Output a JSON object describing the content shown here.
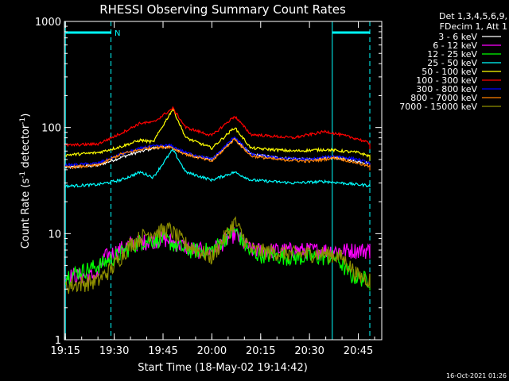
{
  "chart_data": {
    "type": "line",
    "title": "RHESSI Observing Summary Count Rates",
    "xlabel": "Start Time (18-May-02 19:14:42)",
    "ylabel_main": "Count Rate (s",
    "ylabel_sup1": "-1",
    "ylabel_mid": " detector",
    "ylabel_sup2": "-1",
    "ylabel_end": ")",
    "yscale": "log",
    "xlim": [
      "19:15",
      "20:52"
    ],
    "ylim": [
      1,
      1000
    ],
    "x_ticks": [
      "19:15",
      "19:30",
      "19:45",
      "20:00",
      "20:15",
      "20:30",
      "20:45"
    ],
    "y_ticks": [
      "1",
      "10",
      "100",
      "1000"
    ],
    "legend_header": [
      "Det 1,3,4,5,6,9,",
      "FDecim 1, Att 1"
    ],
    "legend_position": "right",
    "annotation_letter": "N",
    "timestamp": "16-Oct-2021 01:26",
    "grid": false,
    "series": [
      {
        "name": "3 - 6 keV",
        "color": "#ffffff",
        "points": [
          [
            "19:15",
            42
          ],
          [
            "19:25",
            44
          ],
          [
            "19:35",
            56
          ],
          [
            "19:42",
            64
          ],
          [
            "19:47",
            66
          ],
          [
            "19:52",
            56
          ],
          [
            "20:00",
            50
          ],
          [
            "20:07",
            78
          ],
          [
            "20:12",
            56
          ],
          [
            "20:20",
            52
          ],
          [
            "20:30",
            50
          ],
          [
            "20:38",
            52
          ],
          [
            "20:45",
            48
          ],
          [
            "20:52",
            44
          ]
        ]
      },
      {
        "name": "6 - 12 keV",
        "color": "#ff00ff",
        "points": [
          [
            "19:15",
            4
          ],
          [
            "19:25",
            4
          ],
          [
            "19:27",
            6
          ],
          [
            "19:35",
            8
          ],
          [
            "19:45",
            9
          ],
          [
            "19:55",
            7
          ],
          [
            "20:00",
            7
          ],
          [
            "20:07",
            10
          ],
          [
            "20:12",
            7
          ],
          [
            "20:25",
            7
          ],
          [
            "20:40",
            7
          ],
          [
            "20:45",
            7
          ],
          [
            "20:52",
            7
          ]
        ]
      },
      {
        "name": "12 - 25 keV",
        "color": "#00ff00",
        "points": [
          [
            "19:15",
            4
          ],
          [
            "19:25",
            5
          ],
          [
            "19:30",
            6
          ],
          [
            "19:38",
            8.5
          ],
          [
            "19:45",
            9
          ],
          [
            "19:52",
            7
          ],
          [
            "20:00",
            7
          ],
          [
            "20:07",
            11
          ],
          [
            "20:12",
            6.5
          ],
          [
            "20:25",
            6
          ],
          [
            "20:38",
            6
          ],
          [
            "20:43",
            4
          ],
          [
            "20:52",
            3.5
          ]
        ]
      },
      {
        "name": "25 - 50 keV",
        "color": "#00ffff",
        "points": [
          [
            "19:15",
            28
          ],
          [
            "19:25",
            29
          ],
          [
            "19:32",
            32
          ],
          [
            "19:38",
            38
          ],
          [
            "19:42",
            34
          ],
          [
            "19:48",
            62
          ],
          [
            "19:52",
            38
          ],
          [
            "20:00",
            32
          ],
          [
            "20:07",
            38
          ],
          [
            "20:12",
            32
          ],
          [
            "20:25",
            30
          ],
          [
            "20:35",
            31
          ],
          [
            "20:45",
            29
          ],
          [
            "20:52",
            28
          ]
        ]
      },
      {
        "name": "50 - 100 keV",
        "color": "#ffff00",
        "points": [
          [
            "19:15",
            55
          ],
          [
            "19:25",
            58
          ],
          [
            "19:32",
            66
          ],
          [
            "19:38",
            76
          ],
          [
            "19:42",
            73
          ],
          [
            "19:48",
            150
          ],
          [
            "19:52",
            80
          ],
          [
            "20:00",
            64
          ],
          [
            "20:07",
            100
          ],
          [
            "20:12",
            64
          ],
          [
            "20:25",
            60
          ],
          [
            "20:35",
            62
          ],
          [
            "20:45",
            58
          ],
          [
            "20:52",
            50
          ]
        ]
      },
      {
        "name": "100 - 300 keV",
        "color": "#ff0000",
        "points": [
          [
            "19:15",
            68
          ],
          [
            "19:25",
            70
          ],
          [
            "19:32",
            88
          ],
          [
            "19:38",
            110
          ],
          [
            "19:42",
            112
          ],
          [
            "19:48",
            152
          ],
          [
            "19:52",
            100
          ],
          [
            "20:00",
            84
          ],
          [
            "20:07",
            128
          ],
          [
            "20:12",
            86
          ],
          [
            "20:25",
            80
          ],
          [
            "20:35",
            92
          ],
          [
            "20:45",
            78
          ],
          [
            "20:52",
            64
          ]
        ]
      },
      {
        "name": "300 - 800 keV",
        "color": "#0000ff",
        "points": [
          [
            "19:15",
            44
          ],
          [
            "19:25",
            46
          ],
          [
            "19:32",
            56
          ],
          [
            "19:40",
            66
          ],
          [
            "19:47",
            68
          ],
          [
            "19:52",
            58
          ],
          [
            "20:00",
            50
          ],
          [
            "20:07",
            82
          ],
          [
            "20:12",
            56
          ],
          [
            "20:20",
            52
          ],
          [
            "20:30",
            50
          ],
          [
            "20:38",
            54
          ],
          [
            "20:45",
            50
          ],
          [
            "20:52",
            42
          ]
        ]
      },
      {
        "name": "800 - 7000 keV",
        "color": "#ff8000",
        "points": [
          [
            "19:15",
            42
          ],
          [
            "19:25",
            44
          ],
          [
            "19:32",
            56
          ],
          [
            "19:40",
            64
          ],
          [
            "19:47",
            66
          ],
          [
            "19:52",
            56
          ],
          [
            "20:00",
            48
          ],
          [
            "20:07",
            78
          ],
          [
            "20:12",
            54
          ],
          [
            "20:20",
            50
          ],
          [
            "20:30",
            48
          ],
          [
            "20:38",
            52
          ],
          [
            "20:45",
            46
          ],
          [
            "20:52",
            40
          ]
        ]
      },
      {
        "name": "7000 - 15000 keV",
        "color": "#8f8f00",
        "points": [
          [
            "19:15",
            3.2
          ],
          [
            "19:25",
            3.6
          ],
          [
            "19:30",
            5
          ],
          [
            "19:35",
            8
          ],
          [
            "19:40",
            10
          ],
          [
            "19:47",
            11
          ],
          [
            "19:52",
            8
          ],
          [
            "20:00",
            6
          ],
          [
            "20:07",
            13
          ],
          [
            "20:12",
            7
          ],
          [
            "20:25",
            6.5
          ],
          [
            "20:35",
            6.5
          ],
          [
            "20:40",
            6
          ],
          [
            "20:45",
            4
          ],
          [
            "20:52",
            3.5
          ]
        ]
      }
    ],
    "detector_markers": {
      "color": "#00ffff",
      "times": [
        "19:15",
        "20:37"
      ],
      "dashed_times": [
        "19:29",
        "20:53"
      ]
    }
  }
}
